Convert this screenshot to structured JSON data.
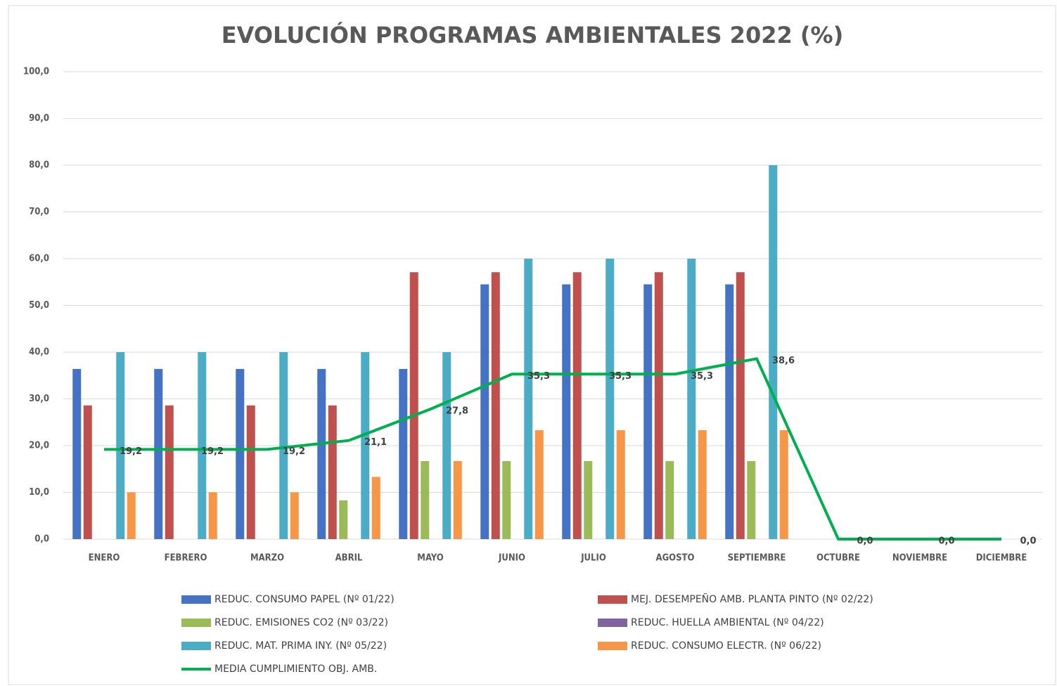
{
  "chart_data": {
    "type": "bar",
    "title": "EVOLUCIÓN PROGRAMAS AMBIENTALES 2022 (%)",
    "categories": [
      "ENERO",
      "FEBRERO",
      "MARZO",
      "ABRIL",
      "MAYO",
      "JUNIO",
      "JULIO",
      "AGOSTO",
      "SEPTIEMBRE",
      "OCTUBRE",
      "NOVIEMBRE",
      "DICIEMBRE"
    ],
    "series": [
      {
        "name": "REDUC. CONSUMO PAPEL (Nº 01/22)",
        "color": "#4472c4",
        "type": "bar",
        "values": [
          36.4,
          36.4,
          36.4,
          36.4,
          36.4,
          54.5,
          54.5,
          54.5,
          54.5,
          0,
          0,
          0
        ]
      },
      {
        "name": "MEJ. DESEMPEÑO AMB. PLANTA PINTO (Nº 02/22)",
        "color": "#c0504d",
        "type": "bar",
        "values": [
          28.6,
          28.6,
          28.6,
          28.6,
          57.1,
          57.1,
          57.1,
          57.1,
          57.1,
          0,
          0,
          0
        ]
      },
      {
        "name": "REDUC. EMISIONES CO2 (Nº 03/22)",
        "color": "#9bbb59",
        "type": "bar",
        "values": [
          0,
          0,
          0,
          8.3,
          16.7,
          16.7,
          16.7,
          16.7,
          16.7,
          0,
          0,
          0
        ]
      },
      {
        "name": "REDUC. HUELLA AMBIENTAL (Nº 04/22)",
        "color": "#8064a2",
        "type": "bar",
        "values": [
          0,
          0,
          0,
          0,
          0,
          0,
          0,
          0,
          0,
          0,
          0,
          0
        ]
      },
      {
        "name": "REDUC. MAT. PRIMA INY. (Nº 05/22)",
        "color": "#4bacc6",
        "type": "bar",
        "values": [
          40,
          40,
          40,
          40,
          40,
          60,
          60,
          60,
          80,
          0,
          0,
          0
        ]
      },
      {
        "name": "REDUC. CONSUMO ELECTR. (Nº 06/22)",
        "color": "#f79646",
        "type": "bar",
        "values": [
          10,
          10,
          10,
          13.3,
          16.7,
          23.3,
          23.3,
          23.3,
          23.3,
          0,
          0,
          0
        ]
      },
      {
        "name": "MEDIA CUMPLIMIENTO OBJ. AMB.",
        "color": "#00b050",
        "type": "line",
        "values": [
          19.2,
          19.2,
          19.2,
          21.1,
          27.8,
          35.3,
          35.3,
          35.3,
          38.6,
          0,
          0,
          0
        ],
        "value_labels": [
          "19,2",
          "19,2",
          "19,2",
          "21,1",
          "27,8",
          "35,3",
          "35,3",
          "35,3",
          "38,6",
          "0,0",
          "0,0",
          "0,0"
        ]
      }
    ],
    "ylim": [
      0,
      100
    ],
    "yticks": [
      {
        "value": 0,
        "label": "0,0"
      },
      {
        "value": 10,
        "label": "10,0"
      },
      {
        "value": 20,
        "label": "20,0"
      },
      {
        "value": 30,
        "label": "30,0"
      },
      {
        "value": 40,
        "label": "40,0"
      },
      {
        "value": 50,
        "label": "50,0"
      },
      {
        "value": 60,
        "label": "60,0"
      },
      {
        "value": 70,
        "label": "70,0"
      },
      {
        "value": 80,
        "label": "80,0"
      },
      {
        "value": 90,
        "label": "90,0"
      },
      {
        "value": 100,
        "label": "100,0"
      }
    ],
    "grid": true,
    "legend": "bottom"
  }
}
